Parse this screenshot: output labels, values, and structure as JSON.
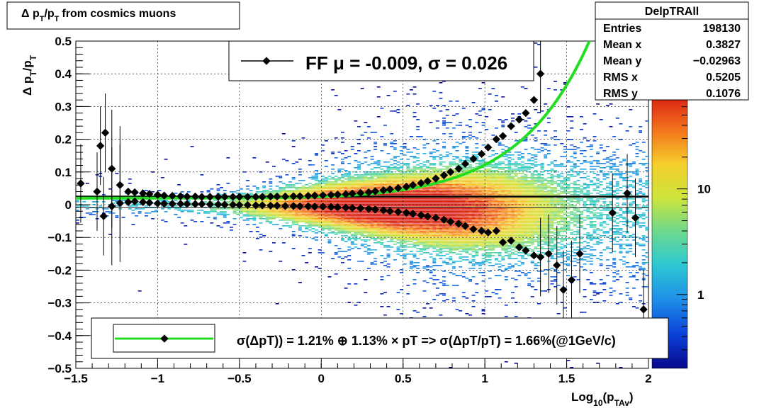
{
  "chart_data": {
    "type": "heatmap",
    "title": "Δ p_T/p_T from cosmics muons",
    "title_parts": {
      "a": "Δ p",
      "b": "T",
      "c": "/p",
      "d": "T",
      "e": "from cosmics muons"
    },
    "xlabel": "Log10(pTAv)",
    "xlabel_parts": {
      "a": "Log",
      "b": "10",
      "c": "(p",
      "d": "TAv",
      "e": ")"
    },
    "ylabel": "Δ p_T/p_T",
    "ylabel_parts": {
      "a": "Δ p",
      "b": "T",
      "c": "/p",
      "d": "T"
    },
    "xlim": [
      -1.5,
      2.0
    ],
    "ylim": [
      -0.5,
      0.5
    ],
    "x_ticks": [
      "−1.5",
      "−1",
      "−0.5",
      "0",
      "0.5",
      "1",
      "1.5",
      "2"
    ],
    "x_tick_values": [
      -1.5,
      -1,
      -0.5,
      0,
      0.5,
      1,
      1.5,
      2
    ],
    "y_ticks": [
      "−0.5",
      "−0.4",
      "−0.3",
      "−0.2",
      "−0.1",
      "0",
      "0.1",
      "0.2",
      "0.3",
      "0.4",
      "0.5"
    ],
    "y_tick_values": [
      -0.5,
      -0.4,
      -0.3,
      -0.2,
      -0.1,
      0,
      0.1,
      0.2,
      0.3,
      0.4,
      0.5
    ],
    "colorbar": {
      "scale": "log",
      "ticks": [
        "1",
        "10"
      ],
      "tick_values": [
        1,
        10
      ],
      "range": [
        0.2,
        80
      ]
    },
    "grid": true,
    "stats_box": {
      "title": "DelpTRAll",
      "rows": [
        {
          "label": "Entries",
          "value": "198130"
        },
        {
          "label": "Mean x",
          "value": "0.3827"
        },
        {
          "label": "Mean y",
          "value": "−0.02963"
        },
        {
          "label": "RMS x",
          "value": "0.5205"
        },
        {
          "label": "RMS y",
          "value": "0.1076"
        }
      ]
    },
    "legend_top": {
      "text": "FF μ = -0.009, σ =   0.026"
    },
    "legend_bottom": {
      "text": "σ(ΔpT)) =  1.21% ⊕  1.13% × pT => σ(ΔpT/pT) =  1.66%(@1GeV/c)"
    },
    "fit_curve": {
      "color": "#22dd22",
      "sigma_const": 0.0121,
      "sigma_slope": 0.0113,
      "offset": 0.02
    },
    "horizontal_line": {
      "y": 0.025,
      "color": "#000000"
    },
    "upper_points": {
      "x": [
        -1.47,
        -1.37,
        -1.35,
        -1.32,
        -1.28,
        -1.23,
        -1.18,
        -1.14,
        -1.09,
        -1.05,
        -1.0,
        -0.96,
        -0.91,
        -0.86,
        -0.82,
        -0.77,
        -0.73,
        -0.68,
        -0.63,
        -0.59,
        -0.54,
        -0.5,
        -0.45,
        -0.4,
        -0.36,
        -0.31,
        -0.27,
        -0.22,
        -0.17,
        -0.13,
        -0.08,
        -0.04,
        0.01,
        0.06,
        0.1,
        0.15,
        0.19,
        0.24,
        0.29,
        0.33,
        0.38,
        0.42,
        0.47,
        0.52,
        0.56,
        0.61,
        0.65,
        0.7,
        0.75,
        0.79,
        0.84,
        0.88,
        0.93,
        0.98,
        1.02,
        1.07,
        1.11,
        1.16,
        1.21,
        1.25,
        1.3,
        1.34
      ],
      "y": [
        0.065,
        0.04,
        0.18,
        0.22,
        0.11,
        0.06,
        0.04,
        0.038,
        0.035,
        0.033,
        0.03,
        0.028,
        0.027,
        0.026,
        0.025,
        0.025,
        0.024,
        0.024,
        0.024,
        0.024,
        0.024,
        0.024,
        0.024,
        0.024,
        0.024,
        0.025,
        0.025,
        0.025,
        0.026,
        0.026,
        0.027,
        0.028,
        0.029,
        0.03,
        0.031,
        0.032,
        0.034,
        0.036,
        0.038,
        0.041,
        0.044,
        0.047,
        0.051,
        0.055,
        0.06,
        0.066,
        0.072,
        0.08,
        0.09,
        0.1,
        0.11,
        0.125,
        0.14,
        0.155,
        0.175,
        0.2,
        0.21,
        0.24,
        0.26,
        0.28,
        0.32,
        0.4
      ]
    },
    "lower_points": {
      "x": [
        -1.33,
        -1.28,
        -1.23,
        -1.18,
        -1.14,
        -1.09,
        -1.05,
        -1.0,
        -0.96,
        -0.91,
        -0.86,
        -0.82,
        -0.77,
        -0.73,
        -0.68,
        -0.63,
        -0.59,
        -0.54,
        -0.5,
        -0.45,
        -0.4,
        -0.36,
        -0.31,
        -0.27,
        -0.22,
        -0.17,
        -0.13,
        -0.08,
        -0.04,
        0.01,
        0.06,
        0.1,
        0.15,
        0.19,
        0.24,
        0.29,
        0.33,
        0.38,
        0.42,
        0.47,
        0.52,
        0.56,
        0.61,
        0.65,
        0.7,
        0.75,
        0.79,
        0.84,
        0.88,
        0.93,
        0.98,
        1.02,
        1.07,
        1.11,
        1.16,
        1.21,
        1.25,
        1.3,
        1.34,
        1.39,
        1.44,
        1.48,
        1.53,
        1.58,
        1.78,
        1.87,
        1.92,
        1.97
      ],
      "y": [
        -0.035,
        -0.005,
        0.005,
        0.008,
        0.01,
        0.008,
        0.006,
        0.004,
        0.003,
        0.003,
        0.003,
        0.002,
        0.002,
        0.002,
        0.001,
        0.001,
        0.0,
        0.0,
        -0.001,
        -0.001,
        -0.002,
        -0.002,
        -0.003,
        -0.003,
        -0.004,
        -0.004,
        -0.005,
        -0.005,
        -0.006,
        -0.006,
        -0.007,
        -0.008,
        -0.009,
        -0.01,
        -0.011,
        -0.013,
        -0.015,
        -0.017,
        -0.02,
        -0.022,
        -0.025,
        -0.028,
        -0.032,
        -0.036,
        -0.04,
        -0.046,
        -0.052,
        -0.058,
        -0.065,
        -0.075,
        -0.08,
        -0.085,
        -0.08,
        -0.115,
        -0.11,
        -0.13,
        -0.14,
        -0.155,
        -0.16,
        -0.15,
        -0.185,
        -0.26,
        -0.23,
        -0.15,
        -0.025,
        0.035,
        -0.04,
        -0.32
      ]
    }
  }
}
